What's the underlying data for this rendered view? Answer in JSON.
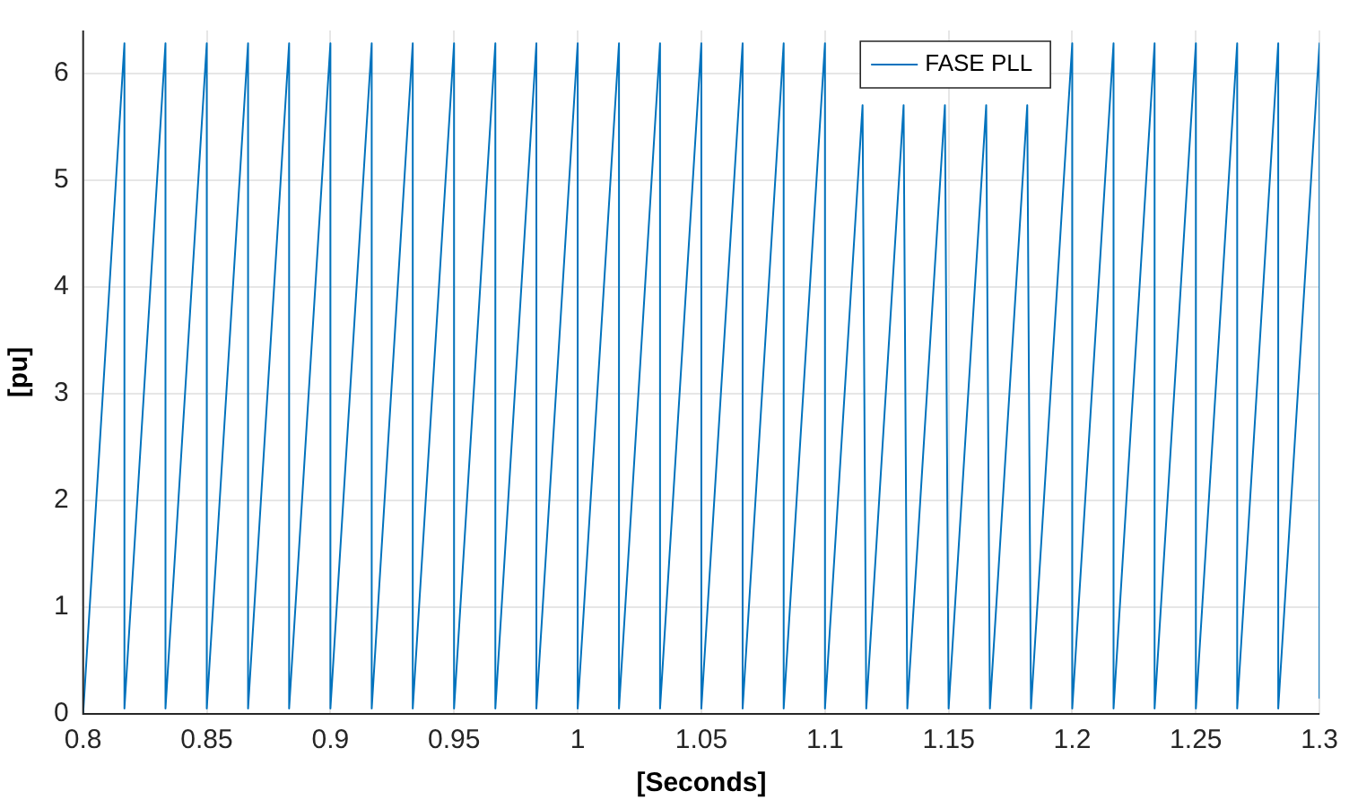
{
  "chart_data": {
    "type": "line",
    "xlabel": "[Seconds]",
    "ylabel": "[pu]",
    "x": [
      0.8,
      0.8167,
      0.8167,
      0.8333,
      0.8333,
      0.85,
      0.85,
      0.8667,
      0.8667,
      0.8833,
      0.8833,
      0.9,
      0.9,
      0.9167,
      0.9167,
      0.9333,
      0.9333,
      0.95,
      0.95,
      0.9667,
      0.9667,
      0.9833,
      0.9833,
      1.0,
      1.0,
      1.0167,
      1.0167,
      1.0333,
      1.0333,
      1.05,
      1.05,
      1.0667,
      1.0667,
      1.0833,
      1.0833,
      1.1,
      1.1,
      1.1152,
      1.1167,
      1.1318,
      1.1333,
      1.1485,
      1.15,
      1.1652,
      1.1667,
      1.1818,
      1.1833,
      1.2,
      1.2,
      1.2167,
      1.2167,
      1.2333,
      1.2333,
      1.25,
      1.25,
      1.2667,
      1.2667,
      1.2833,
      1.2833,
      1.3,
      1.3
    ],
    "series": [
      {
        "name": "FASE PLL",
        "color": "#0072bd",
        "values": [
          0,
          6.28,
          0.05,
          6.28,
          0.05,
          6.28,
          0.05,
          6.28,
          0.05,
          6.28,
          0.05,
          6.28,
          0.05,
          6.28,
          0.05,
          6.28,
          0.05,
          6.28,
          0.05,
          6.28,
          0.05,
          6.28,
          0.05,
          6.28,
          0.05,
          6.28,
          0.05,
          6.28,
          0.05,
          6.28,
          0.05,
          6.28,
          0.05,
          6.28,
          0.05,
          6.28,
          0.05,
          5.7,
          0.05,
          5.7,
          0.05,
          5.7,
          0.05,
          5.7,
          0.05,
          5.7,
          0.05,
          6.28,
          0.05,
          6.28,
          0.05,
          6.28,
          0.05,
          6.28,
          0.05,
          6.28,
          0.05,
          6.28,
          0.05,
          6.28,
          0.15
        ]
      }
    ],
    "xlim": [
      0.8,
      1.3
    ],
    "xticks": [
      0.8,
      0.85,
      0.9,
      0.95,
      1,
      1.05,
      1.1,
      1.15,
      1.2,
      1.25,
      1.3
    ],
    "ylim": [
      0,
      6.4
    ],
    "yticks": [
      0,
      1,
      2,
      3,
      4,
      5,
      6
    ],
    "grid": true,
    "legend": "top right",
    "marker": "none",
    "line_style": "solid"
  }
}
